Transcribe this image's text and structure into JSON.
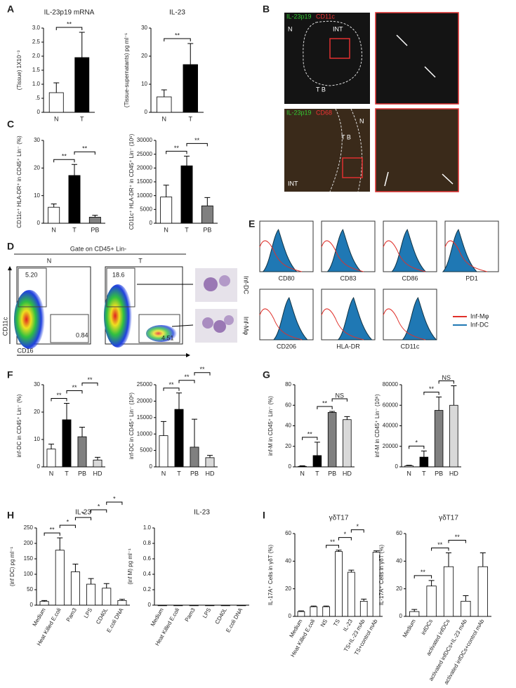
{
  "panel_labels": [
    "A",
    "B",
    "C",
    "D",
    "E",
    "F",
    "G",
    "H",
    "I"
  ],
  "panel_b": {
    "top": {
      "marker1": "IL-23p19",
      "marker2": "CD11c",
      "regions": [
        "N",
        "INT",
        "T B"
      ]
    },
    "bottom": {
      "marker1": "IL-23p19",
      "marker2": "CD68",
      "regions": [
        "T B",
        "N",
        "INT"
      ]
    }
  },
  "panel_d": {
    "gate": "Gate on CD45+ Lin-",
    "groups": [
      "N",
      "T"
    ],
    "gates_n": [
      "5.20",
      "0.84"
    ],
    "gates_t": [
      "18.6",
      "4.51"
    ],
    "x_axis": "CD16",
    "y_axis": "CD11c",
    "cells": [
      "Inf-DC",
      "Inf-Mφ"
    ]
  },
  "panel_e": {
    "markers": [
      "CD80",
      "CD83",
      "CD86",
      "PD1",
      "CD206",
      "HLA-DR",
      "CD11c"
    ],
    "legend": [
      {
        "name": "Inf-Mφ",
        "color": "#e0302a"
      },
      {
        "name": "Inf-DC",
        "color": "#1f78b4"
      }
    ]
  },
  "chart_data": [
    {
      "type": "bar",
      "title": "IL-23p19 mRNA",
      "ylabel": "(Tissue) 1X10⁻³",
      "categories": [
        "N",
        "T"
      ],
      "values": [
        0.7,
        1.95
      ],
      "errors": [
        0.35,
        0.9
      ],
      "colors": [
        "#ffffff",
        "#000000"
      ],
      "ylim": [
        0,
        3
      ],
      "yticks": [
        0,
        {
          "value": 0.5,
          "label": ".5"
        },
        {
          "value": 1,
          "label": "1.0"
        },
        1.5,
        {
          "value": 2,
          "label": "2.0"
        },
        2.5,
        {
          "value": 3,
          "label": "3.0"
        }
      ],
      "significance": [
        {
          "pair": [
            "N",
            "T"
          ],
          "label": "**"
        }
      ]
    },
    {
      "type": "bar",
      "title": "IL-23",
      "ylabel": "(Tissue-supernatants) pg ml⁻¹",
      "categories": [
        "N",
        "T"
      ],
      "values": [
        5.5,
        17
      ],
      "errors": [
        2.5,
        7.5
      ],
      "colors": [
        "#ffffff",
        "#000000"
      ],
      "ylim": [
        0,
        30
      ],
      "yticks": [
        0,
        10,
        20,
        30
      ],
      "significance": [
        {
          "pair": [
            "N",
            "T"
          ],
          "label": "**"
        }
      ]
    },
    {
      "type": "bar",
      "ylabel": "CD11c⁺ HLA-DR⁺ in CD45⁺ Lin⁻ (%)",
      "categories": [
        "N",
        "T",
        "PB"
      ],
      "values": [
        5.8,
        17.3,
        2.2
      ],
      "errors": [
        1.2,
        4,
        0.7
      ],
      "colors": [
        "#ffffff",
        "#000000",
        "#808080"
      ],
      "ylim": [
        0,
        30
      ],
      "yticks": [
        0,
        10,
        20,
        30
      ],
      "significance": [
        {
          "pair": [
            "N",
            "T"
          ],
          "label": "**"
        },
        {
          "pair": [
            "T",
            "PB"
          ],
          "label": "**"
        }
      ]
    },
    {
      "type": "bar",
      "ylabel": "CD11c⁺ HLA-DR⁺ in CD45⁺ Lin⁻ (10⁶)",
      "categories": [
        "N",
        "T",
        "PB"
      ],
      "values": [
        9500,
        20800,
        6300
      ],
      "errors": [
        4300,
        3500,
        3000
      ],
      "colors": [
        "#ffffff",
        "#000000",
        "#808080"
      ],
      "ylim": [
        0,
        30000
      ],
      "yticks": [
        0,
        5000,
        10000,
        15000,
        20000,
        25000,
        30000
      ],
      "significance": [
        {
          "pair": [
            "N",
            "T"
          ],
          "label": "**"
        },
        {
          "pair": [
            "T",
            "PB"
          ],
          "label": "**"
        }
      ]
    },
    {
      "type": "bar",
      "ylabel": "inf-DC in CD45⁺ Lin⁻ (%)",
      "categories": [
        "N",
        "T",
        "PB",
        "HD"
      ],
      "values": [
        6.5,
        17.2,
        11,
        2.5
      ],
      "errors": [
        1.8,
        6,
        3.5,
        1
      ],
      "colors": [
        "#ffffff",
        "#000000",
        "#808080",
        "#d9d9d9"
      ],
      "ylim": [
        0,
        30
      ],
      "yticks": [
        0,
        10,
        20,
        30
      ],
      "significance": [
        {
          "pair": [
            "N",
            "T"
          ],
          "label": "**"
        },
        {
          "pair": [
            "T",
            "PB"
          ],
          "label": "**"
        },
        {
          "pair": [
            "PB",
            "HD"
          ],
          "label": "**"
        }
      ]
    },
    {
      "type": "bar",
      "ylabel": "inf-DC in CD45⁺ Lin⁻ (10⁶)",
      "categories": [
        "N",
        "T",
        "PB",
        "HD"
      ],
      "values": [
        9500,
        17500,
        6000,
        2800
      ],
      "errors": [
        4300,
        5000,
        8500,
        700
      ],
      "colors": [
        "#ffffff",
        "#000000",
        "#808080",
        "#d9d9d9"
      ],
      "ylim": [
        0,
        25000
      ],
      "yticks": [
        0,
        5000,
        10000,
        15000,
        20000,
        25000
      ],
      "significance": [
        {
          "pair": [
            "N",
            "T"
          ],
          "label": "**"
        },
        {
          "pair": [
            "T",
            "PB"
          ],
          "label": "**"
        },
        {
          "pair": [
            "PB",
            "HD"
          ],
          "label": "**"
        }
      ]
    },
    {
      "type": "bar",
      "ylabel": "inf-M in CD45⁺ Lin⁻ (%)",
      "categories": [
        "N",
        "T",
        "PB",
        "HD"
      ],
      "values": [
        0.5,
        11,
        53,
        46
      ],
      "errors": [
        0.5,
        13,
        1,
        3
      ],
      "colors": [
        "#ffffff",
        "#000000",
        "#808080",
        "#d9d9d9"
      ],
      "ylim": [
        0,
        80
      ],
      "yticks": [
        0,
        20,
        40,
        60,
        80
      ],
      "significance": [
        {
          "pair": [
            "N",
            "T"
          ],
          "label": "**"
        },
        {
          "pair": [
            "T",
            "PB"
          ],
          "label": "**"
        },
        {
          "pair": [
            "PB",
            "HD"
          ],
          "label": "NS"
        }
      ]
    },
    {
      "type": "bar",
      "ylabel": "inf-M in CD45⁺ Lin⁻ (10⁶)",
      "categories": [
        "N",
        "T",
        "PB",
        "HD"
      ],
      "values": [
        1000,
        9500,
        55000,
        60000
      ],
      "errors": [
        500,
        6000,
        13000,
        19000
      ],
      "colors": [
        "#ffffff",
        "#000000",
        "#808080",
        "#d9d9d9"
      ],
      "ylim": [
        0,
        80000
      ],
      "yticks": [
        0,
        20000,
        40000,
        60000,
        80000
      ],
      "significance": [
        {
          "pair": [
            "N",
            "T"
          ],
          "label": "*"
        },
        {
          "pair": [
            "T",
            "PB"
          ],
          "label": "**"
        },
        {
          "pair": [
            "PB",
            "HD"
          ],
          "label": "NS"
        }
      ]
    },
    {
      "type": "bar",
      "title": "IL-23",
      "ylabel": "(inf DC) pg ml⁻¹",
      "rotate_labels": true,
      "categories": [
        "Medium",
        "Heat Killed E.coli",
        "Pam3",
        "LPS",
        "CD40L",
        "E.coli DNA"
      ],
      "values": [
        12,
        178,
        108,
        68,
        55,
        15
      ],
      "errors": [
        3,
        40,
        25,
        18,
        15,
        4
      ],
      "colors": [
        "#ffffff",
        "#ffffff",
        "#ffffff",
        "#ffffff",
        "#ffffff",
        "#ffffff"
      ],
      "ylim": [
        0,
        250
      ],
      "yticks": [
        0,
        50,
        100,
        150,
        200,
        250
      ],
      "significance": [
        {
          "pair": [
            "Medium",
            "Heat Killed E.coli"
          ],
          "label": "**"
        },
        {
          "pair": [
            "Heat Killed E.coli",
            "Pam3"
          ],
          "label": "*"
        },
        {
          "pair": [
            "Pam3",
            "LPS"
          ],
          "label": "*"
        },
        {
          "pair": [
            "LPS",
            "CD40L"
          ],
          "label": "*"
        },
        {
          "pair": [
            "CD40L",
            "E.coli DNA"
          ],
          "label": "*"
        }
      ]
    },
    {
      "type": "bar",
      "title": "IL-23",
      "ylabel": "(inf M) pg ml⁻¹",
      "rotate_labels": true,
      "categories": [
        "Medium",
        "Heat Killed E.coli",
        "Pam3",
        "LPS",
        "CD40L",
        "E.coli DNA"
      ],
      "values": [
        0,
        0,
        0,
        0,
        0,
        0
      ],
      "colors": [
        "#ffffff",
        "#ffffff",
        "#ffffff",
        "#ffffff",
        "#ffffff",
        "#ffffff"
      ],
      "ylim": [
        0,
        1
      ],
      "yticks": [
        0,
        0.2,
        0.4,
        0.6,
        0.8,
        {
          "value": 1,
          "label": "1.0"
        }
      ]
    },
    {
      "type": "bar",
      "title": "γδT17",
      "ylabel": "IL-17A⁺ Cells in γδT (%)",
      "rotate_labels": true,
      "categories": [
        "Medium",
        "Heat Killed E.coli",
        "NS",
        "TS",
        "IL-23",
        "TS+IL-23 mAb",
        "TS+control mAb"
      ],
      "values": [
        3.5,
        7,
        7,
        47,
        32,
        11,
        46.5
      ],
      "errors": [
        0.5,
        0.5,
        0.5,
        1,
        1.5,
        1.5,
        1
      ],
      "colors": [
        "#ffffff",
        "#ffffff",
        "#ffffff",
        "#ffffff",
        "#ffffff",
        "#ffffff",
        "#ffffff"
      ],
      "ylim": [
        0,
        60
      ],
      "yticks": [
        0,
        20,
        40,
        60
      ],
      "significance": [
        {
          "pair": [
            "NS",
            "TS"
          ],
          "label": "**"
        },
        {
          "pair": [
            "TS",
            "IL-23"
          ],
          "label": "*"
        },
        {
          "pair": [
            "IL-23",
            "TS+IL-23 mAb"
          ],
          "label": "*"
        }
      ]
    },
    {
      "type": "bar",
      "title": "γδT17",
      "ylabel": "IL-17A⁺ Cells in γδT (%)",
      "rotate_labels": true,
      "categories": [
        "Medium",
        "infDCs",
        "activated infDCs",
        "activated infDCs+IL-23 mAb",
        "activated infDCs+control mAb"
      ],
      "values": [
        3.5,
        22,
        36,
        11,
        36
      ],
      "errors": [
        1.5,
        4,
        10,
        4,
        10
      ],
      "colors": [
        "#ffffff",
        "#ffffff",
        "#ffffff",
        "#ffffff",
        "#ffffff"
      ],
      "ylim": [
        0,
        60
      ],
      "yticks": [
        0,
        20,
        40,
        60
      ],
      "significance": [
        {
          "pair": [
            "Medium",
            "infDCs"
          ],
          "label": "**"
        },
        {
          "pair": [
            "infDCs",
            "activated infDCs"
          ],
          "label": "**"
        },
        {
          "pair": [
            "activated infDCs",
            "activated infDCs+IL-23 mAb"
          ],
          "label": "**"
        }
      ]
    }
  ]
}
